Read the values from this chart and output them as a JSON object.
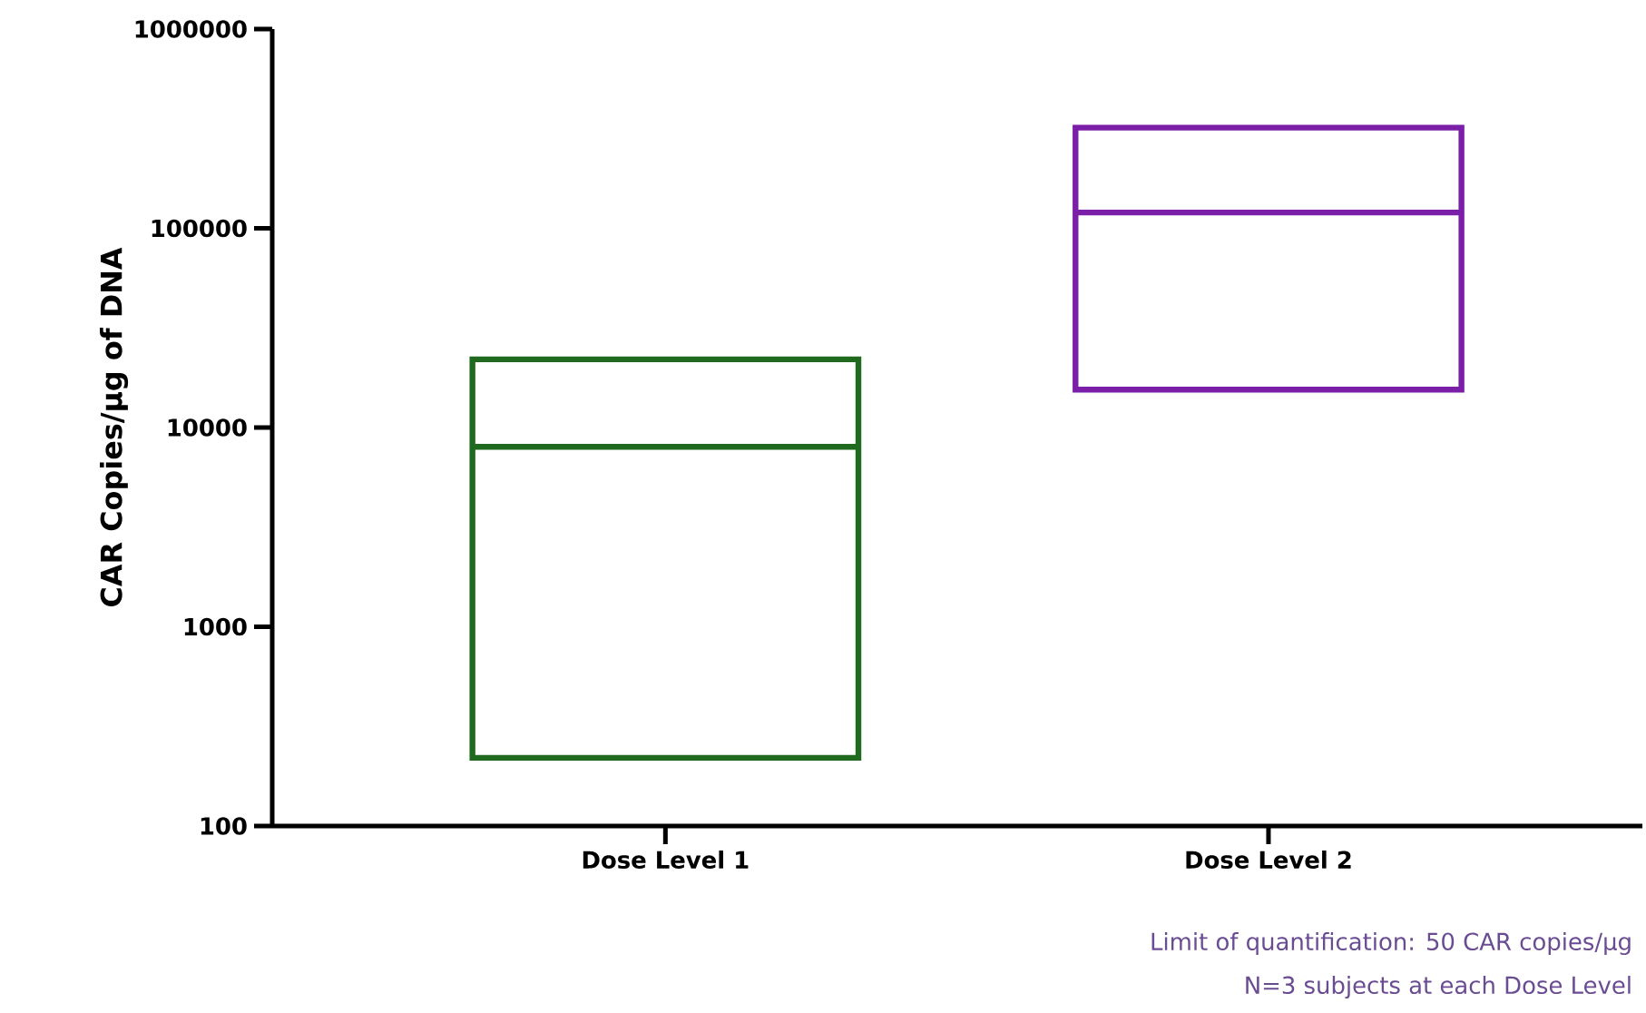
{
  "chart_data": {
    "type": "box",
    "ylabel": "CAR Copies/μg of DNA",
    "categories": [
      "Dose Level 1",
      "Dose Level 2"
    ],
    "series": [
      {
        "color": "#1f6a1f",
        "boxes": [
          {
            "low": 220,
            "q1": 220,
            "median": 8000,
            "q3": 22000,
            "high": 22000
          },
          null
        ]
      },
      {
        "color": "#7b1fa8",
        "boxes": [
          null,
          {
            "low": 15500,
            "q1": 15500,
            "median": 120000,
            "q3": 320000,
            "high": 320000
          }
        ]
      }
    ],
    "log": "y",
    "ylim": [
      100,
      1000000
    ],
    "yticks": [
      100,
      1000,
      10000,
      100000,
      1000000
    ],
    "grid": false,
    "annotations": [
      "Limit of quantification: 50 CAR copies/μg",
      "N=3 subjects at each Dose Level"
    ]
  }
}
